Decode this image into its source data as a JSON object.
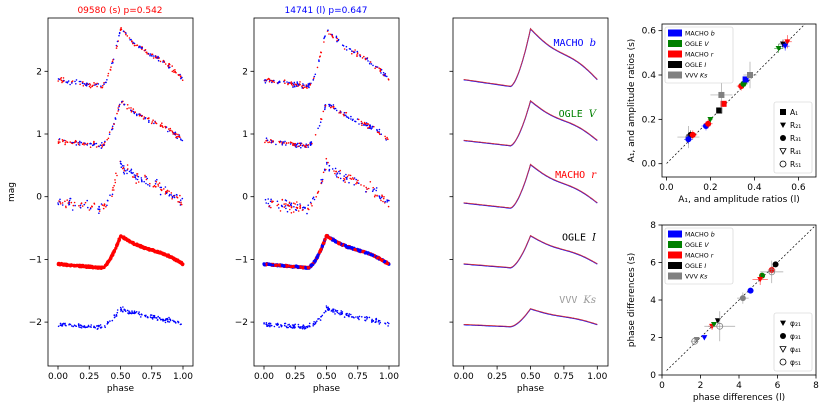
{
  "figure": {
    "panel1_title": "09580 (s) p=0.542",
    "panel2_title": "14741 (l) p=0.647",
    "panel1_title_color": "#ff0000",
    "panel2_title_color": "#0000ff",
    "mag_label": "mag",
    "phase_label": "phase"
  },
  "colors": {
    "MACHO_b": "#0000ff",
    "OGLE_V": "#008000",
    "MACHO_r": "#ff0000",
    "OGLE_I": "#000000",
    "VVV_Ks": "#808080",
    "template": "#cc3344"
  },
  "chart_data": [
    {
      "type": "scatter",
      "title": "09580 (s) p=0.542",
      "xlabel": "phase",
      "ylabel": "mag",
      "xlim": [
        -0.08,
        1.08
      ],
      "ylim": [
        -2.7,
        2.85
      ],
      "xticks": [
        0.0,
        0.25,
        0.5,
        0.75,
        1.0
      ],
      "xticklabels": [
        "0.00",
        "0.25",
        "0.50",
        "0.75",
        "1.00"
      ],
      "yticks": [
        -2,
        -1,
        0,
        1,
        2
      ],
      "yticklabels": [
        "−2",
        "−1",
        "0",
        "1",
        "2"
      ],
      "series": [
        {
          "name": "MACHO b",
          "offset": 2.0,
          "amplitude": 0.9
        },
        {
          "name": "OGLE V",
          "offset": 1.0,
          "amplitude": 0.7
        },
        {
          "name": "MACHO r",
          "offset": 0.0,
          "amplitude": 0.68
        },
        {
          "name": "OGLE I",
          "offset": -1.0,
          "amplitude": 0.5
        },
        {
          "name": "VVV Ks",
          "offset": -2.0,
          "amplitude": 0.28
        }
      ]
    },
    {
      "type": "scatter",
      "title": "14741 (l) p=0.647",
      "xlabel": "phase",
      "ylabel": "",
      "xlim": [
        -0.08,
        1.08
      ],
      "ylim": [
        -2.7,
        2.85
      ],
      "xticks": [
        0.0,
        0.25,
        0.5,
        0.75,
        1.0
      ],
      "xticklabels": [
        "0.00",
        "0.25",
        "0.50",
        "0.75",
        "1.00"
      ],
      "yticks": [
        -2,
        -1,
        0,
        1,
        2
      ],
      "yticklabels": [
        "−2",
        "−1",
        "0",
        "1",
        "2"
      ],
      "series": [
        {
          "name": "MACHO b",
          "offset": 2.0,
          "amplitude": 0.9
        },
        {
          "name": "OGLE V",
          "offset": 1.0,
          "amplitude": 0.7
        },
        {
          "name": "MACHO r",
          "offset": 0.0,
          "amplitude": 0.68
        },
        {
          "name": "OGLE I",
          "offset": -1.0,
          "amplitude": 0.5
        },
        {
          "name": "VVV Ks",
          "offset": -2.0,
          "amplitude": 0.28
        }
      ]
    },
    {
      "type": "line",
      "title": "",
      "xlabel": "phase",
      "ylabel": "",
      "xlim": [
        -0.08,
        1.08
      ],
      "ylim": [
        -2.7,
        2.85
      ],
      "xticks": [
        0.0,
        0.25,
        0.5,
        0.75,
        1.0
      ],
      "xticklabels": [
        "0.00",
        "0.25",
        "0.50",
        "0.75",
        "1.00"
      ],
      "yticks": [
        -2,
        -1,
        0,
        1,
        2
      ],
      "labels": [
        {
          "text": "MACHO",
          "italic": "b",
          "y": 2.45,
          "color": "#0000ff"
        },
        {
          "text": "OGLE",
          "italic": "V",
          "y": 1.32,
          "color": "#008000"
        },
        {
          "text": "MACHO",
          "italic": "r",
          "y": 0.35,
          "color": "#ff0000"
        },
        {
          "text": "OGLE",
          "italic": "I",
          "y": -0.65,
          "color": "#000000"
        },
        {
          "text": "VVV",
          "italic": "Ks",
          "y": -1.65,
          "color": "#999999"
        }
      ]
    },
    {
      "type": "scatter",
      "title": "",
      "xlabel": "A₁, and amplitude ratios (l)",
      "ylabel": "A₁, and amplitude ratios (s)",
      "xlim": [
        -0.02,
        0.68
      ],
      "ylim": [
        -0.06,
        0.63
      ],
      "xticks": [
        0.0,
        0.2,
        0.4,
        0.6
      ],
      "xticklabels": [
        "0.0",
        "0.2",
        "0.4",
        "0.6"
      ],
      "yticks": [
        0.0,
        0.2,
        0.4,
        0.6
      ],
      "yticklabels": [
        "0.0",
        "0.2",
        "0.4",
        "0.6"
      ],
      "legend_bands": [
        "MACHO b",
        "OGLE V",
        "MACHO r",
        "OGLE I",
        "VVV Ks"
      ],
      "legend_markers": [
        "A₁",
        "R₂₁",
        "R₃₁",
        "R₄₁",
        "R₅₁"
      ],
      "points": [
        {
          "x": 0.1,
          "y": 0.12,
          "m": "circle",
          "c": "#808080",
          "ex": 0.05,
          "ey": 0.05
        },
        {
          "x": 0.11,
          "y": 0.13,
          "m": "circle",
          "c": "#000000",
          "ex": 0.02,
          "ey": 0.02
        },
        {
          "x": 0.12,
          "y": 0.13,
          "m": "circle",
          "c": "#ff0000",
          "ex": 0.02,
          "ey": 0.02
        },
        {
          "x": 0.1,
          "y": 0.11,
          "m": "circle",
          "c": "#0000ff",
          "ex": 0.02,
          "ey": 0.02
        },
        {
          "x": 0.18,
          "y": 0.17,
          "m": "circle",
          "c": "#0000ff",
          "ex": 0.02,
          "ey": 0.02
        },
        {
          "x": 0.19,
          "y": 0.18,
          "m": "circle",
          "c": "#ff0000",
          "ex": 0.02,
          "ey": 0.02
        },
        {
          "x": 0.2,
          "y": 0.2,
          "m": "triangle",
          "c": "#008000",
          "ex": 0.01,
          "ey": 0.01
        },
        {
          "x": 0.24,
          "y": 0.24,
          "m": "square",
          "c": "#000000",
          "ex": 0.01,
          "ey": 0.01
        },
        {
          "x": 0.26,
          "y": 0.27,
          "m": "square",
          "c": "#ff0000",
          "ex": 0.01,
          "ey": 0.01
        },
        {
          "x": 0.25,
          "y": 0.31,
          "m": "square",
          "c": "#808080",
          "ex": 0.05,
          "ey": 0.08
        },
        {
          "x": 0.34,
          "y": 0.35,
          "m": "circle",
          "c": "#ff0000",
          "ex": 0.02,
          "ey": 0.02
        },
        {
          "x": 0.35,
          "y": 0.36,
          "m": "circle",
          "c": "#008000",
          "ex": 0.02,
          "ey": 0.02
        },
        {
          "x": 0.36,
          "y": 0.38,
          "m": "square",
          "c": "#0000ff",
          "ex": 0.01,
          "ey": 0.01
        },
        {
          "x": 0.38,
          "y": 0.4,
          "m": "square",
          "c": "#808080",
          "ex": 0.03,
          "ey": 0.06
        },
        {
          "x": 0.51,
          "y": 0.52,
          "m": "triangle",
          "c": "#008000",
          "ex": 0.02,
          "ey": 0.02
        },
        {
          "x": 0.53,
          "y": 0.54,
          "m": "triangle",
          "c": "#000000",
          "ex": 0.02,
          "ey": 0.02
        },
        {
          "x": 0.55,
          "y": 0.55,
          "m": "triangle",
          "c": "#ff0000",
          "ex": 0.02,
          "ey": 0.03
        },
        {
          "x": 0.54,
          "y": 0.53,
          "m": "triangle",
          "c": "#0000ff",
          "ex": 0.02,
          "ey": 0.02
        }
      ]
    },
    {
      "type": "scatter",
      "title": "",
      "xlabel": "phase differences (l)",
      "ylabel": "phase differences (s)",
      "xlim": [
        0,
        8
      ],
      "ylim": [
        0,
        8
      ],
      "xticks": [
        0,
        2,
        4,
        6,
        8
      ],
      "xticklabels": [
        "0",
        "2",
        "4",
        "6",
        "8"
      ],
      "yticks": [
        0,
        2,
        4,
        6,
        8
      ],
      "yticklabels": [
        "0",
        "2",
        "4",
        "6",
        "8"
      ],
      "legend_bands": [
        "MACHO b",
        "OGLE V",
        "MACHO r",
        "OGLE I",
        "VVV Ks"
      ],
      "legend_markers": [
        "φ₂₁",
        "φ₃₁",
        "φ₄₁",
        "φ₅₁"
      ],
      "points": [
        {
          "x": 1.7,
          "y": 1.8,
          "m": "open",
          "c": "#808080",
          "ex": 0.2,
          "ey": 0.2
        },
        {
          "x": 1.8,
          "y": 1.9,
          "m": "triangle",
          "c": "#808080",
          "ex": 0.1,
          "ey": 0.1
        },
        {
          "x": 2.2,
          "y": 2.0,
          "m": "triangle",
          "c": "#0000ff",
          "ex": 0.1,
          "ey": 0.1
        },
        {
          "x": 2.6,
          "y": 2.6,
          "m": "triangle",
          "c": "#ff0000",
          "ex": 0.2,
          "ey": 0.2
        },
        {
          "x": 2.7,
          "y": 2.7,
          "m": "triangle",
          "c": "#008000",
          "ex": 0.1,
          "ey": 0.1
        },
        {
          "x": 2.9,
          "y": 2.9,
          "m": "triangle",
          "c": "#000000",
          "ex": 0.1,
          "ey": 0.1
        },
        {
          "x": 3.0,
          "y": 2.6,
          "m": "open",
          "c": "#808080",
          "ex": 0.8,
          "ey": 0.8
        },
        {
          "x": 4.2,
          "y": 4.1,
          "m": "circle",
          "c": "#808080",
          "ex": 0.3,
          "ey": 0.3
        },
        {
          "x": 4.6,
          "y": 4.5,
          "m": "circle",
          "c": "#0000ff",
          "ex": 0.1,
          "ey": 0.1
        },
        {
          "x": 5.2,
          "y": 5.3,
          "m": "circle",
          "c": "#008000",
          "ex": 0.1,
          "ey": 0.1
        },
        {
          "x": 5.1,
          "y": 5.1,
          "m": "triangle",
          "c": "#ff0000",
          "ex": 0.4,
          "ey": 0.3
        },
        {
          "x": 5.7,
          "y": 5.6,
          "m": "circle",
          "c": "#ff0000",
          "ex": 0.2,
          "ey": 0.2
        },
        {
          "x": 5.9,
          "y": 5.9,
          "m": "circle",
          "c": "#000000",
          "ex": 0.1,
          "ey": 0.1
        },
        {
          "x": 5.7,
          "y": 5.5,
          "m": "open",
          "c": "#808080",
          "ex": 0.6,
          "ey": 0.6
        }
      ]
    }
  ]
}
